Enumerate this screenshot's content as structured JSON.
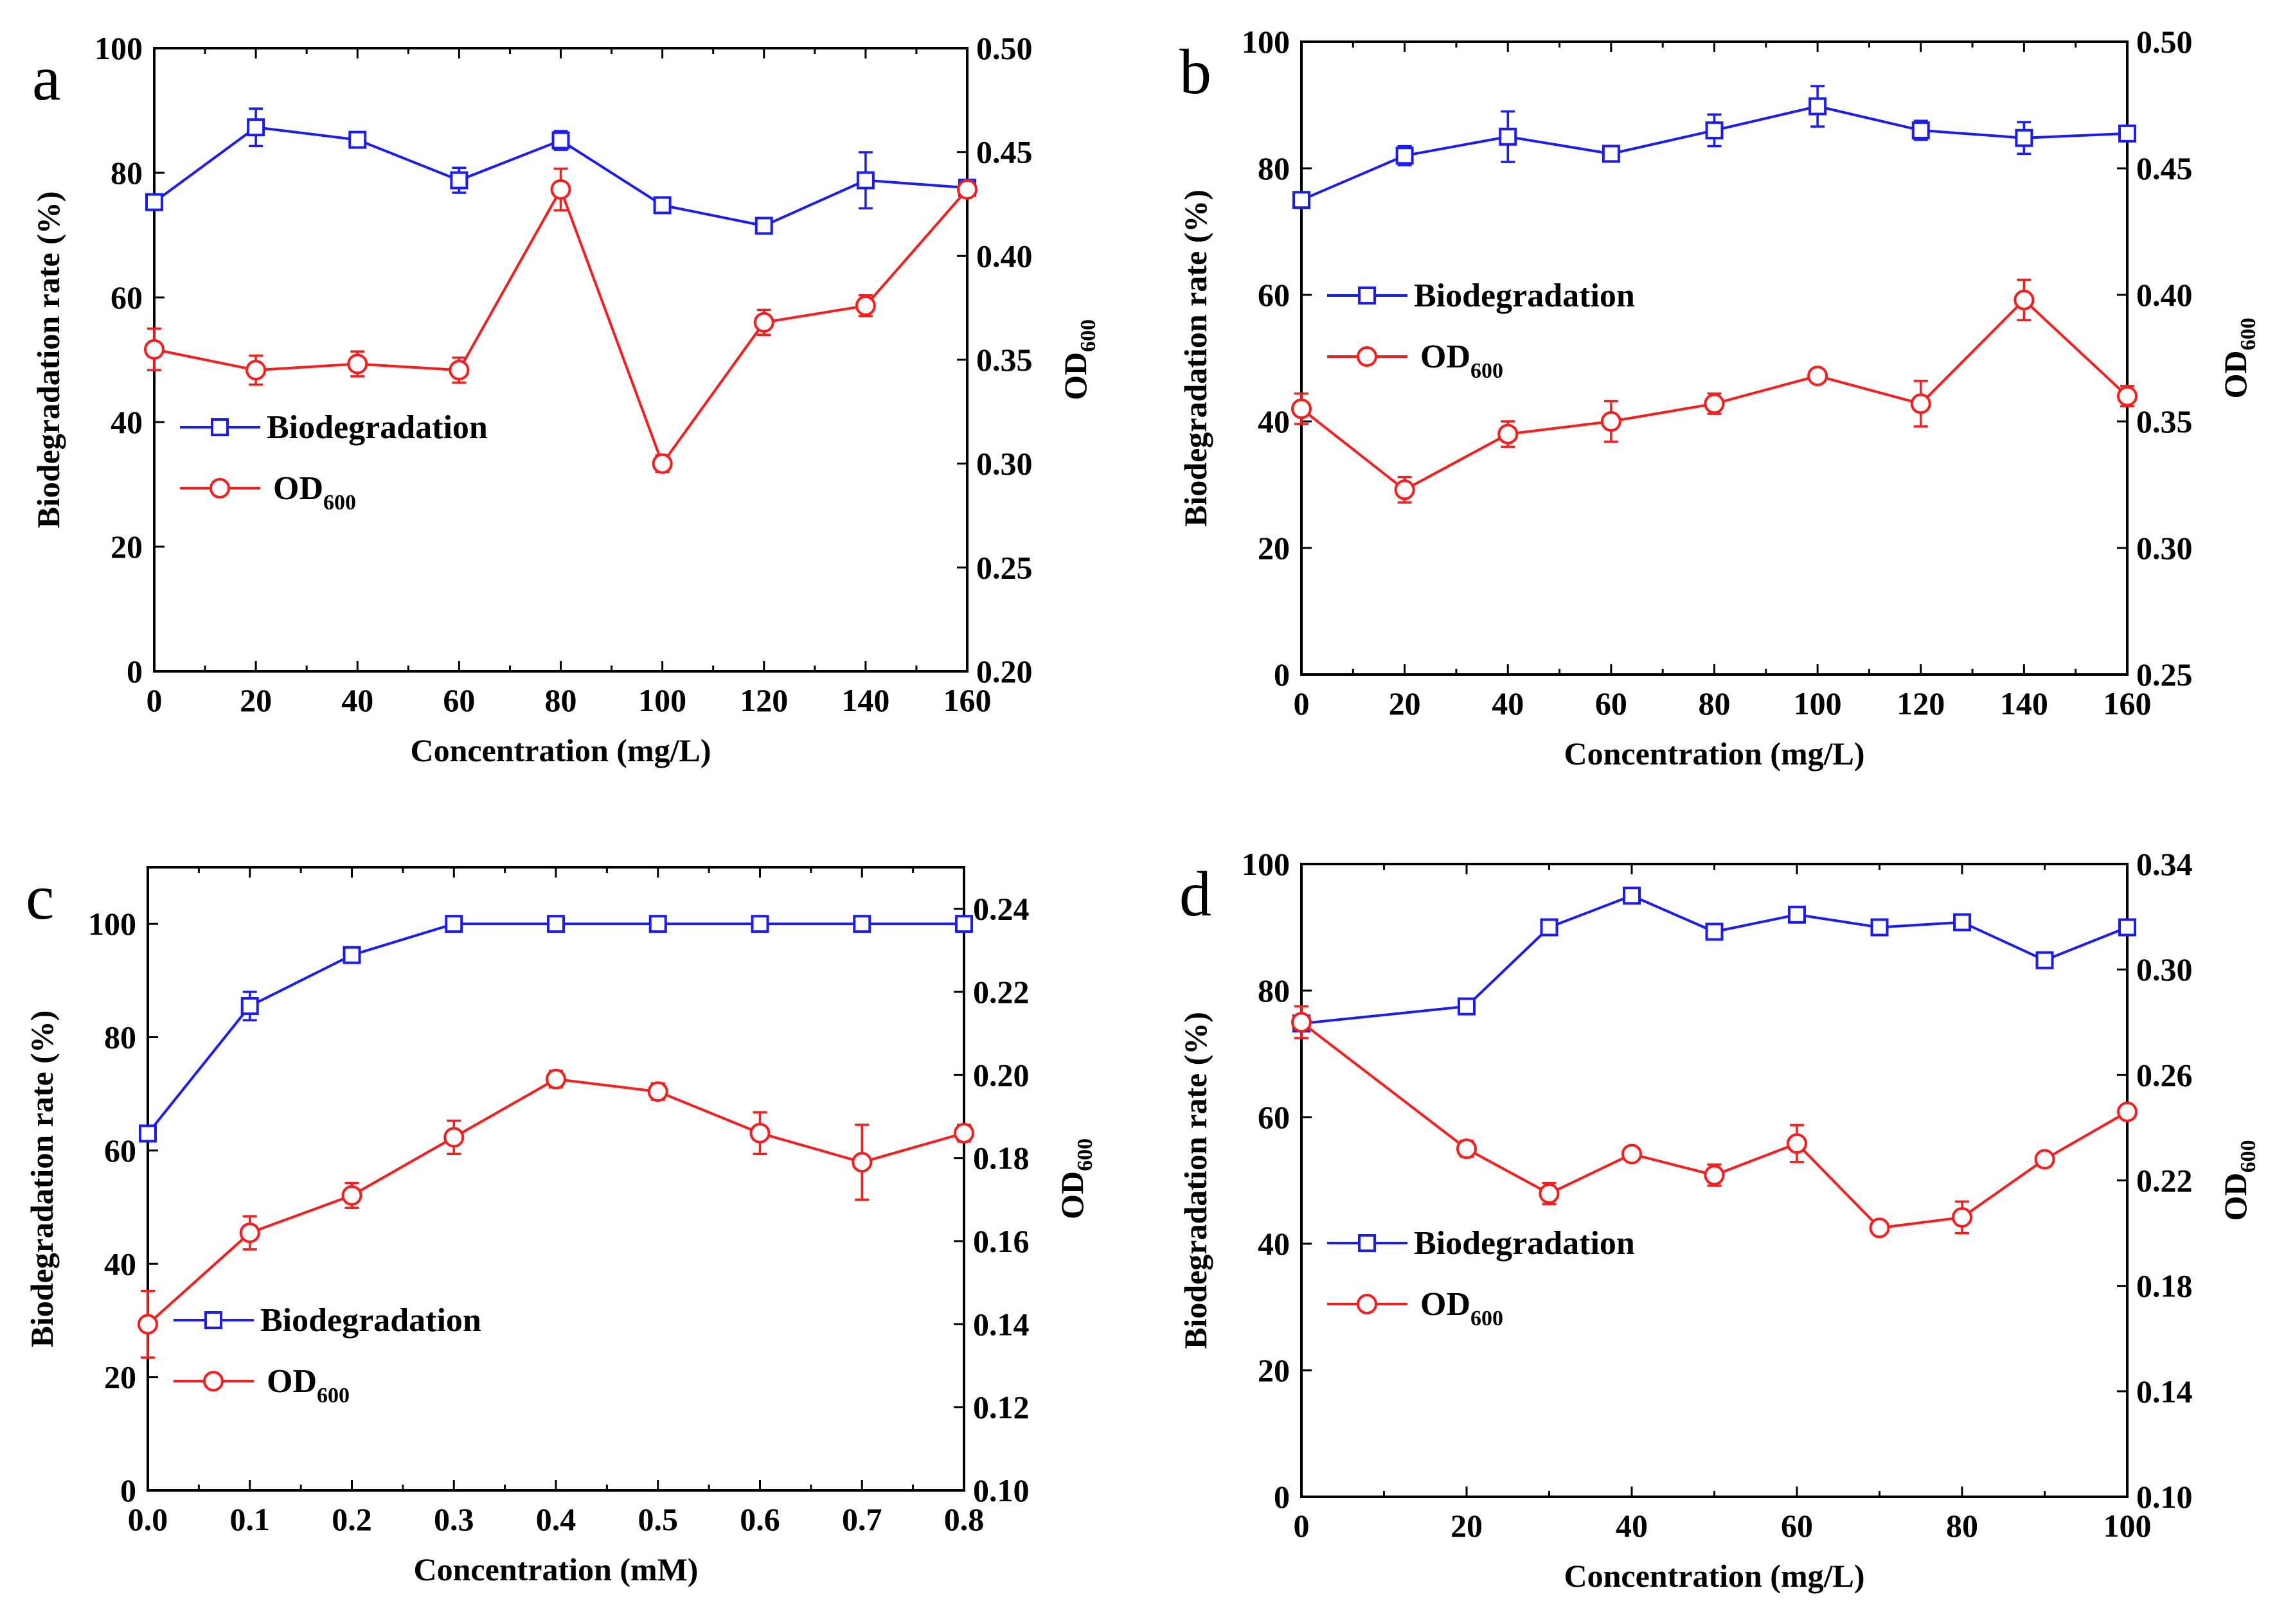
{
  "colors": {
    "bio": "#1a1aff",
    "od": "#ff1a1a",
    "axis": "#000000"
  },
  "chart_data": [
    {
      "type": "line",
      "panel": "a",
      "xlabel": "Concentration (mg/L)",
      "ylabel": "Biodegradation rate (%)",
      "y2label": "OD",
      "y2label_sub": "600",
      "xlim": [
        0,
        160
      ],
      "ylim": [
        0,
        100
      ],
      "y2lim": [
        0.2,
        0.5
      ],
      "xticks": [
        "0",
        "20",
        "40",
        "60",
        "80",
        "100",
        "120",
        "140",
        "160"
      ],
      "yticks": [
        "0",
        "20",
        "40",
        "60",
        "80",
        "100"
      ],
      "y2ticks": [
        "0.20",
        "0.25",
        "0.30",
        "0.35",
        "0.40",
        "0.45",
        "0.50"
      ],
      "legend": {
        "bio": "Biodegradation",
        "od": "OD",
        "od_sub": "600",
        "placement": "left-middle"
      },
      "series": [
        {
          "name": "Biodegradation",
          "axis": "left",
          "marker": "square",
          "x": [
            0,
            20,
            40,
            60,
            80,
            100,
            120,
            140,
            160
          ],
          "values": [
            75.3,
            87.3,
            85.3,
            78.8,
            85.2,
            74.8,
            71.5,
            78.8,
            77.6
          ],
          "errors": [
            1.0,
            3.0,
            1.2,
            2.0,
            1.5,
            1.0,
            1.0,
            4.5,
            1.0
          ]
        },
        {
          "name": "OD600",
          "axis": "right",
          "marker": "circle",
          "x": [
            0,
            20,
            40,
            60,
            80,
            100,
            120,
            140,
            160
          ],
          "values": [
            0.355,
            0.345,
            0.348,
            0.345,
            0.432,
            0.3,
            0.368,
            0.376,
            0.432
          ],
          "errors": [
            0.01,
            0.007,
            0.006,
            0.006,
            0.01,
            0.004,
            0.006,
            0.005,
            0.003
          ]
        }
      ]
    },
    {
      "type": "line",
      "panel": "b",
      "xlabel": "Concentration (mg/L)",
      "ylabel": "Biodegradation rate (%)",
      "y2label": "OD",
      "y2label_sub": "600",
      "xlim": [
        0,
        160
      ],
      "ylim": [
        0,
        100
      ],
      "y2lim": [
        0.25,
        0.5
      ],
      "xticks": [
        "0",
        "20",
        "40",
        "60",
        "80",
        "100",
        "120",
        "140",
        "160"
      ],
      "yticks": [
        "0",
        "20",
        "40",
        "60",
        "80",
        "100"
      ],
      "y2ticks": [
        "0.25",
        "0.30",
        "0.35",
        "0.40",
        "0.45",
        "0.50"
      ],
      "legend": {
        "bio": "Biodegradation",
        "od": "OD",
        "od_sub": "600",
        "placement": "left-middle"
      },
      "series": [
        {
          "name": "Biodegradation",
          "axis": "left",
          "marker": "square",
          "x": [
            0,
            20,
            40,
            60,
            80,
            100,
            120,
            140,
            160
          ],
          "values": [
            75.0,
            82.0,
            85.0,
            82.3,
            86.0,
            89.8,
            86.0,
            84.8,
            85.5
          ],
          "errors": [
            1.0,
            1.5,
            4.0,
            1.0,
            2.5,
            3.2,
            1.5,
            2.5,
            1.0
          ]
        },
        {
          "name": "OD600",
          "axis": "right",
          "marker": "circle",
          "x": [
            0,
            20,
            40,
            60,
            80,
            100,
            120,
            140,
            160
          ],
          "values": [
            0.355,
            0.323,
            0.345,
            0.35,
            0.357,
            0.368,
            0.357,
            0.398,
            0.36
          ],
          "errors": [
            0.006,
            0.005,
            0.005,
            0.008,
            0.004,
            0.002,
            0.009,
            0.008,
            0.004
          ]
        }
      ]
    },
    {
      "type": "line",
      "panel": "c",
      "xlabel": "Concentration (mM)",
      "ylabel": "Biodegradation rate (%)",
      "y2label": "OD",
      "y2label_sub": "600",
      "xlim": [
        0,
        0.8
      ],
      "ylim": [
        0,
        110
      ],
      "y2lim": [
        0.1,
        0.25
      ],
      "xticks": [
        "0.0",
        "0.1",
        "0.2",
        "0.3",
        "0.4",
        "0.5",
        "0.6",
        "0.7",
        "0.8"
      ],
      "yticks": [
        "0",
        "20",
        "40",
        "60",
        "80",
        "100"
      ],
      "y2ticks": [
        "0.10",
        "0.12",
        "0.14",
        "0.16",
        "0.18",
        "0.20",
        "0.22",
        "0.24"
      ],
      "legend": {
        "bio": "Biodegradation",
        "od": "OD",
        "od_sub": "600",
        "placement": "left-bottom"
      },
      "series": [
        {
          "name": "Biodegradation",
          "axis": "left",
          "marker": "square",
          "x": [
            0.0,
            0.1,
            0.2,
            0.3,
            0.4,
            0.5,
            0.6,
            0.7,
            0.8
          ],
          "values": [
            63.0,
            85.5,
            94.5,
            100,
            100,
            100,
            100,
            100,
            100
          ],
          "errors": [
            1.0,
            2.5,
            1.0,
            0.5,
            0.5,
            0.5,
            0.5,
            0.5,
            0.5
          ]
        },
        {
          "name": "OD600",
          "axis": "right",
          "marker": "circle",
          "x": [
            0.0,
            0.1,
            0.2,
            0.3,
            0.4,
            0.5,
            0.6,
            0.7,
            0.8
          ],
          "values": [
            0.14,
            0.162,
            0.171,
            0.185,
            0.199,
            0.196,
            0.186,
            0.179,
            0.186
          ],
          "errors": [
            0.008,
            0.004,
            0.003,
            0.004,
            0.002,
            0.002,
            0.005,
            0.009,
            0.002
          ]
        }
      ]
    },
    {
      "type": "line",
      "panel": "d",
      "xlabel": "Concentration (mg/L)",
      "ylabel": "Biodegradation rate (%)",
      "y2label": "OD",
      "y2label_sub": "600",
      "xlim": [
        0,
        100
      ],
      "ylim": [
        0,
        100
      ],
      "y2lim": [
        0.1,
        0.34
      ],
      "xticks": [
        "0",
        "20",
        "40",
        "60",
        "80",
        "100"
      ],
      "yticks": [
        "0",
        "20",
        "40",
        "60",
        "80",
        "100"
      ],
      "y2ticks": [
        "0.10",
        "0.14",
        "0.18",
        "0.22",
        "0.26",
        "0.30",
        "0.34"
      ],
      "legend": {
        "bio": "Biodegradation",
        "od": "OD",
        "od_sub": "600",
        "placement": "left-middle"
      },
      "series": [
        {
          "name": "Biodegradation",
          "axis": "left",
          "marker": "square",
          "x": [
            0,
            20,
            30,
            40,
            50,
            60,
            70,
            80,
            90,
            100
          ],
          "values": [
            74.8,
            77.5,
            90.0,
            95.0,
            89.3,
            92.0,
            90.0,
            90.8,
            84.8,
            90.0
          ],
          "errors": [
            1.0,
            1.0,
            1.0,
            1.2,
            1.0,
            1.0,
            1.0,
            1.0,
            1.0,
            1.0
          ]
        },
        {
          "name": "OD600",
          "axis": "right",
          "marker": "circle",
          "x": [
            0,
            20,
            30,
            40,
            50,
            60,
            70,
            80,
            90,
            100
          ],
          "values": [
            0.28,
            0.232,
            0.215,
            0.23,
            0.222,
            0.234,
            0.202,
            0.206,
            0.228,
            0.246
          ],
          "errors": [
            0.006,
            0.003,
            0.004,
            0.002,
            0.004,
            0.007,
            0.002,
            0.006,
            0.002,
            0.002
          ]
        }
      ]
    }
  ]
}
